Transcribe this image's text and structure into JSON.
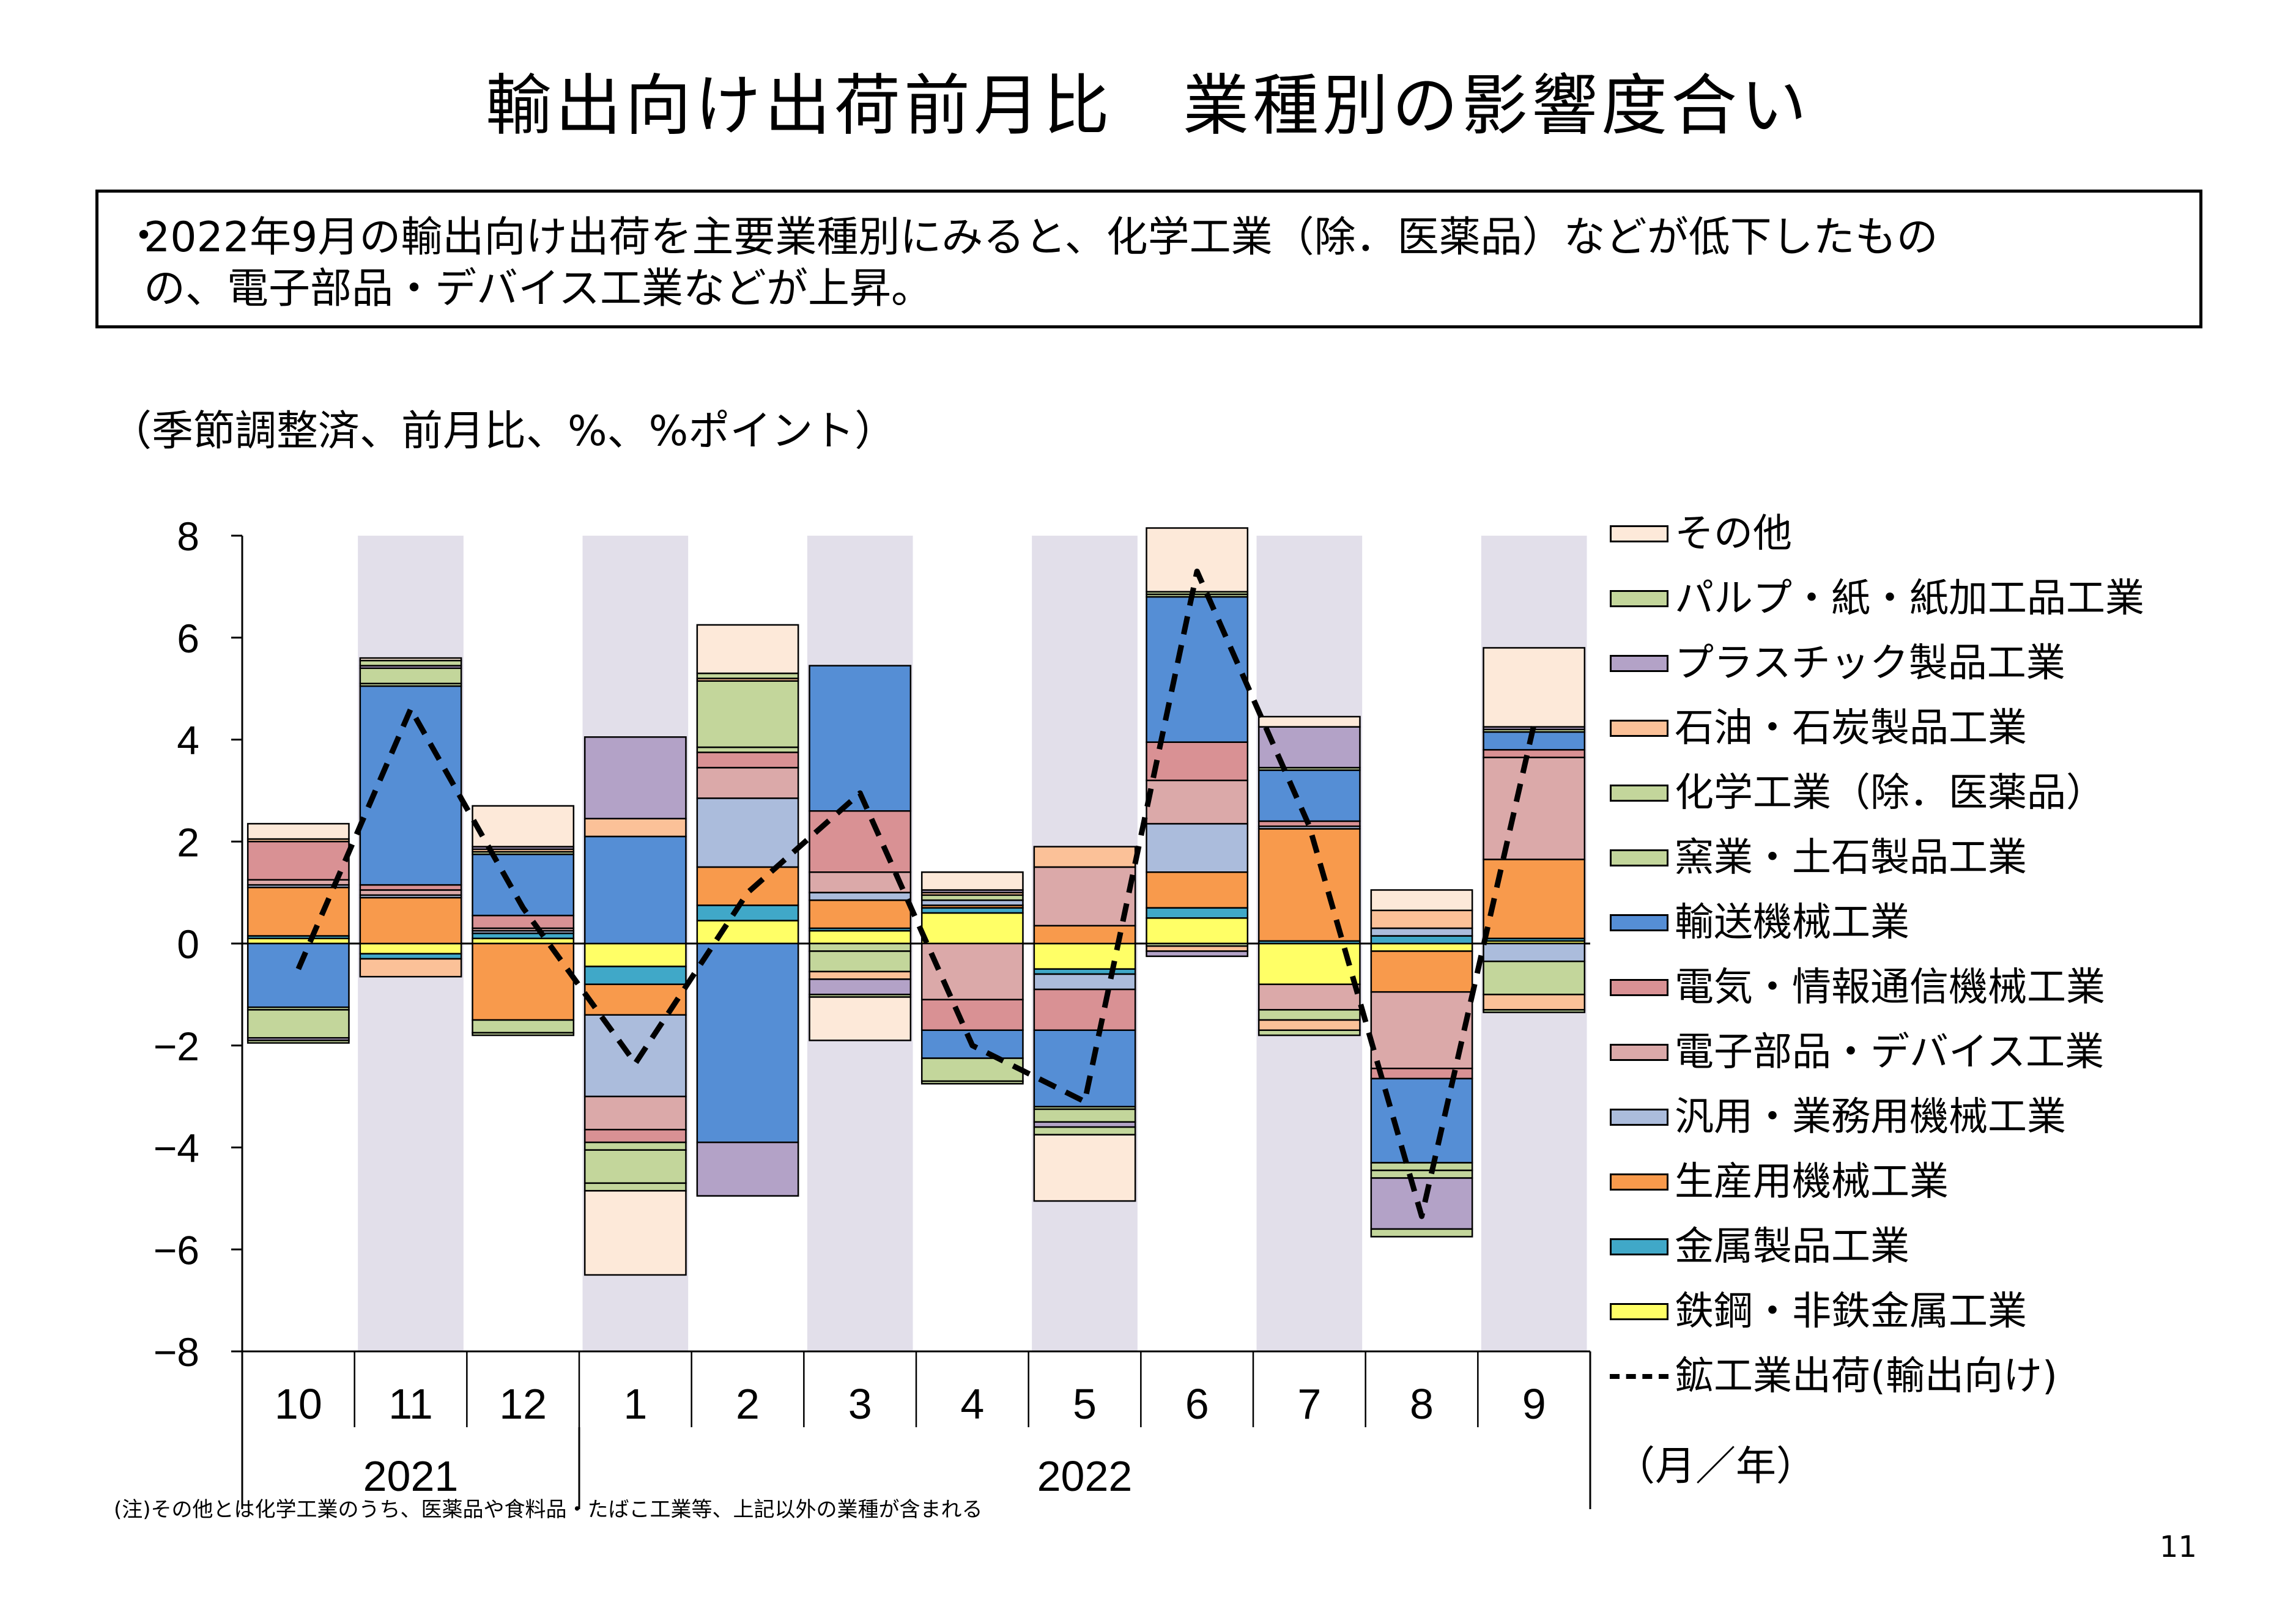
{
  "title": "輸出向け出荷前月比　業種別の影響度合い",
  "summary": {
    "bullet": "・",
    "text": "2022年9月の輸出向け出荷を主要業種別にみると、化学工業（除．医薬品）などが低下したもの\nの、電子部品・デバイス工業などが上昇。"
  },
  "unit_note": "（季節調整済、前月比、%、%ポイント）",
  "footnote": "(注)その他とは化学工業のうち、医薬品や食料品・たばこ工業等、上記以外の業種が含まれる",
  "page_number": "11",
  "axis_unit_label": "（月／年）",
  "chart_data": {
    "type": "bar",
    "stacked": true,
    "categories": [
      "10",
      "11",
      "12",
      "1",
      "2",
      "3",
      "4",
      "5",
      "6",
      "7",
      "8",
      "9"
    ],
    "year_labels": [
      {
        "label": "2021",
        "months": [
          "10",
          "11",
          "12"
        ]
      },
      {
        "label": "2022",
        "months": [
          "1",
          "2",
          "3",
          "4",
          "5",
          "6",
          "7",
          "8",
          "9"
        ]
      }
    ],
    "ylim": [
      -8,
      8
    ],
    "yticks": [
      8,
      6,
      4,
      2,
      0,
      -2,
      -4,
      -6,
      -8
    ],
    "ytick_labels": [
      "8",
      "6",
      "4",
      "2",
      "0",
      "−2",
      "−4",
      "−6",
      "−8"
    ],
    "shaded_categories": [
      "11",
      "1",
      "3",
      "5",
      "7",
      "9"
    ],
    "shade_color": "#e2dfea",
    "series": [
      {
        "name": "鉄鋼・非鉄金属工業",
        "color": "#ffff66",
        "values": [
          0.1,
          -0.2,
          0.1,
          -0.45,
          0.45,
          0.25,
          0.6,
          -0.5,
          0.5,
          -0.8,
          -0.15,
          0.05
        ]
      },
      {
        "name": "金属製品工業",
        "color": "#40a8c8",
        "values": [
          0.05,
          -0.1,
          0.1,
          -0.35,
          0.3,
          0.05,
          0.1,
          -0.1,
          0.2,
          0.05,
          0.15,
          0.05
        ]
      },
      {
        "name": "生産用機械工業",
        "color": "#f89a4c",
        "values": [
          0.95,
          0.9,
          -1.5,
          -0.6,
          0.75,
          0.55,
          0.05,
          0.35,
          0.7,
          2.2,
          -0.8,
          1.55
        ]
      },
      {
        "name": "汎用・業務用機械工業",
        "color": "#abbcdc",
        "values": [
          0.05,
          0.05,
          0.05,
          -1.6,
          1.35,
          0.15,
          0.1,
          -0.3,
          0.95,
          0.05,
          0.15,
          -0.35
        ]
      },
      {
        "name": "電子部品・デバイス工業",
        "color": "#dba9a9",
        "values": [
          0.1,
          0.1,
          0.05,
          -0.65,
          0.6,
          0.4,
          -1.1,
          1.15,
          0.85,
          -0.5,
          -1.5,
          2.0
        ]
      },
      {
        "name": "電気・情報通信機械工業",
        "color": "#d99194",
        "values": [
          0.75,
          0.1,
          0.25,
          -0.25,
          0.3,
          1.2,
          -0.6,
          -0.8,
          0.75,
          0.1,
          -0.2,
          0.15
        ]
      },
      {
        "name": "輸送機械工業",
        "color": "#558ed5",
        "values": [
          -1.25,
          3.9,
          1.2,
          2.1,
          -3.9,
          2.85,
          -0.55,
          -1.5,
          2.85,
          1.0,
          -1.65,
          0.35
        ]
      },
      {
        "name": "窯業・土石製品工業",
        "color": "#c3d69b",
        "values": [
          -0.05,
          0.05,
          0.05,
          -0.15,
          0.1,
          -0.15,
          0.1,
          -0.05,
          0.05,
          0.05,
          -0.15,
          0.05
        ]
      },
      {
        "name": "化学工業（除．医薬品）",
        "color": "#c3d69b",
        "values": [
          -0.55,
          0.3,
          -0.25,
          -0.65,
          1.3,
          -0.4,
          -0.45,
          -0.25,
          -0.05,
          -0.2,
          -0.15,
          -0.65
        ]
      },
      {
        "name": "石油・石炭製品工業",
        "color": "#fbc198",
        "values": [
          0.05,
          -0.35,
          0.05,
          0.35,
          0.05,
          -0.15,
          0.05,
          0.4,
          -0.1,
          -0.2,
          0.35,
          -0.3
        ]
      },
      {
        "name": "プラスチック製品工業",
        "color": "#b3a2c7",
        "values": [
          -0.05,
          0.05,
          0.05,
          1.6,
          -1.05,
          -0.3,
          0.05,
          -0.1,
          -0.1,
          0.8,
          -1.0,
          0.05
        ]
      },
      {
        "name": "パルプ・紙・紙加工品工業",
        "color": "#c3d69b",
        "values": [
          -0.05,
          0.1,
          -0.05,
          -0.15,
          0.1,
          -0.05,
          -0.05,
          -0.15,
          0.05,
          -0.1,
          -0.15,
          -0.05
        ]
      },
      {
        "name": "その他",
        "color": "#fde9d9",
        "values": [
          0.3,
          0.05,
          0.8,
          -1.65,
          0.95,
          -0.85,
          0.35,
          -1.3,
          1.25,
          0.2,
          0.4,
          1.55
        ]
      }
    ],
    "line_series": {
      "name": "鉱工業出荷(輸出向け)",
      "color": "#000000",
      "style": "dashed",
      "values": [
        -0.5,
        4.6,
        0.7,
        -2.35,
        1.0,
        2.95,
        -2.0,
        -3.1,
        7.3,
        2.3,
        -5.35,
        4.3
      ]
    }
  }
}
